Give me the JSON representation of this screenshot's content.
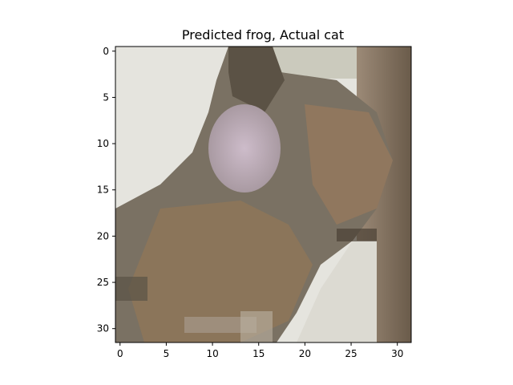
{
  "figure": {
    "title": "Predicted frog, Actual cat"
  },
  "image_axes": {
    "x_ticks": [
      0,
      5,
      10,
      15,
      20,
      25,
      30
    ],
    "y_ticks": [
      0,
      5,
      10,
      15,
      20,
      25,
      30
    ],
    "x_range": [
      -0.5,
      31.5
    ],
    "y_range": [
      -0.5,
      31.5
    ],
    "y_inverted": true
  },
  "image_content": {
    "description_icon": "cat-photo-pixelated",
    "colors": {
      "background_light": "#e6e5e0",
      "fur_gray": "#7a7264",
      "fur_brown": "#9a7a5a",
      "fur_dark": "#4e4538",
      "pink_ear": "#c4b2c0",
      "right_edge": "#7b6b58"
    }
  }
}
